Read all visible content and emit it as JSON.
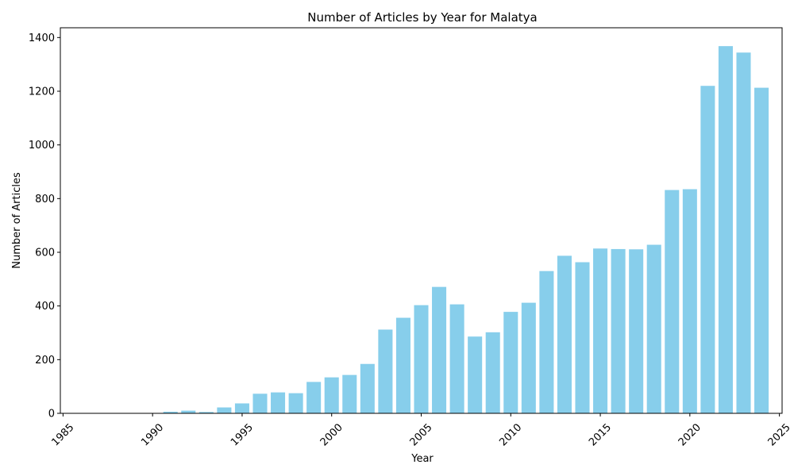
{
  "chart_data": {
    "type": "bar",
    "title": "Number of Articles by Year for Malatya",
    "xlabel": "Year",
    "ylabel": "Number of Articles",
    "x": [
      1987,
      1988,
      1989,
      1990,
      1991,
      1992,
      1993,
      1994,
      1995,
      1996,
      1997,
      1998,
      1999,
      2000,
      2001,
      2002,
      2003,
      2004,
      2005,
      2006,
      2007,
      2008,
      2009,
      2010,
      2011,
      2012,
      2013,
      2014,
      2015,
      2016,
      2017,
      2018,
      2019,
      2020,
      2021,
      2022,
      2023,
      2024
    ],
    "values": [
      1,
      1,
      1,
      1,
      6,
      10,
      5,
      22,
      37,
      73,
      78,
      75,
      117,
      134,
      143,
      184,
      312,
      356,
      403,
      471,
      406,
      286,
      302,
      378,
      412,
      530,
      587,
      563,
      614,
      612,
      611,
      628,
      832,
      835,
      1220,
      1368,
      1344,
      1213
    ],
    "xticks": [
      1985,
      1990,
      1995,
      2000,
      2005,
      2010,
      2015,
      2020,
      2025
    ],
    "yticks": [
      0,
      200,
      400,
      600,
      800,
      1000,
      1200,
      1400
    ],
    "xlim": [
      1984.85,
      2025.15
    ],
    "ylim": [
      0,
      1436.4
    ],
    "bar_color": "#87ceeb",
    "grid": false,
    "legend": false
  }
}
